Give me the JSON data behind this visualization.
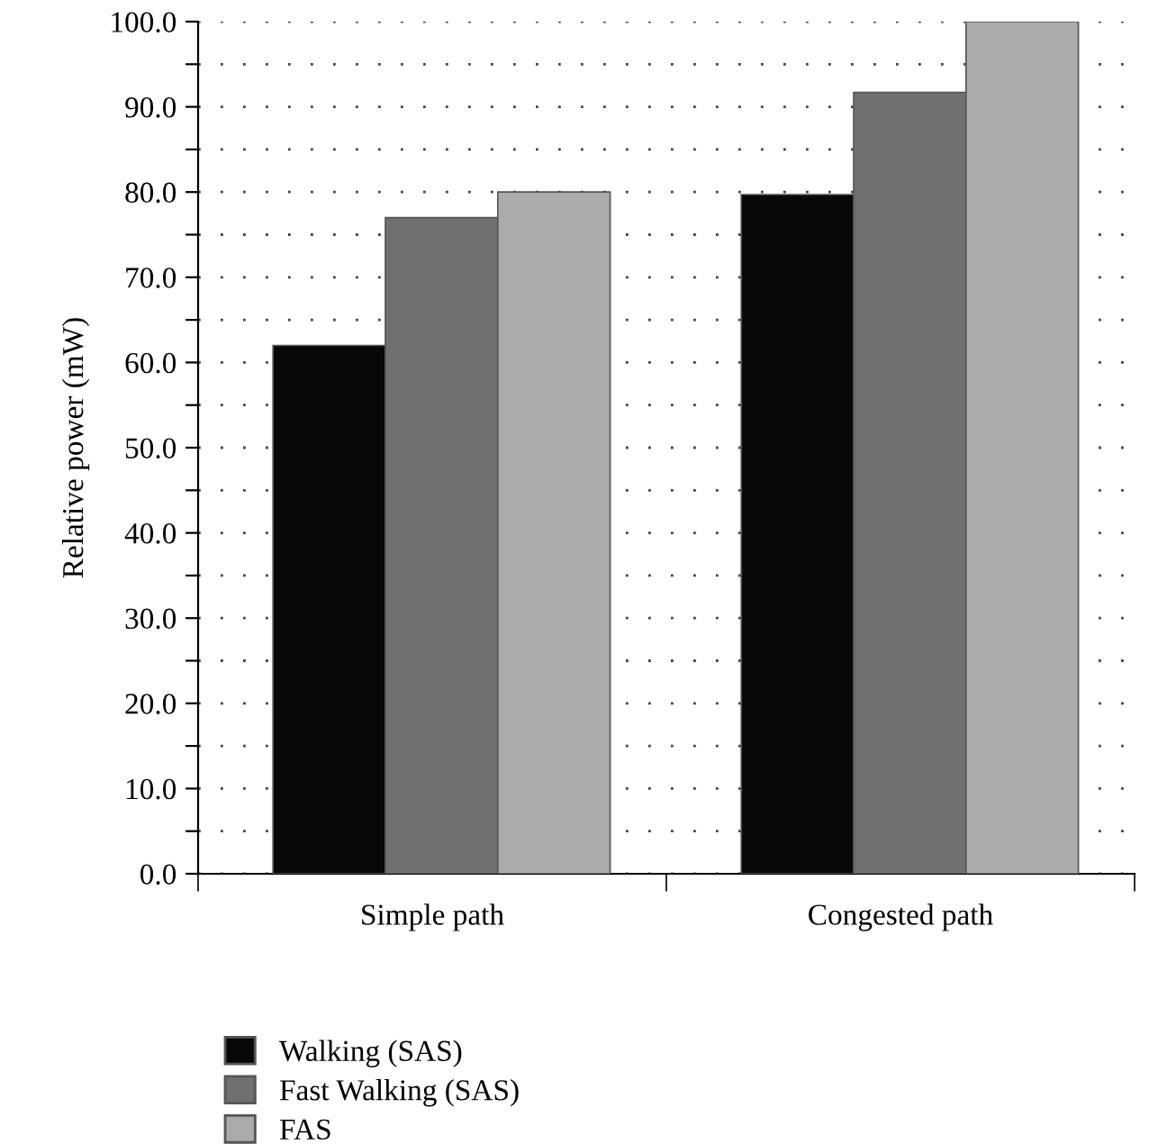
{
  "chart_data": {
    "type": "bar",
    "ylabel": "Relative power (mW)",
    "categories": [
      "Simple path",
      "Congested path"
    ],
    "series": [
      {
        "name": "Walking (SAS)",
        "color": "#080806",
        "values": [
          62.0,
          79.7
        ]
      },
      {
        "name": "Fast Walking (SAS)",
        "color": "#707070",
        "values": [
          77.0,
          91.7
        ]
      },
      {
        "name": "FAS",
        "color": "#ababab",
        "values": [
          80.0,
          100.0
        ]
      }
    ],
    "ylim": [
      0,
      100
    ],
    "yticks": [
      {
        "value": 0,
        "label": "0.0"
      },
      {
        "value": 5,
        "label": null
      },
      {
        "value": 10,
        "label": "10.0"
      },
      {
        "value": 15,
        "label": null
      },
      {
        "value": 20,
        "label": "20.0"
      },
      {
        "value": 25,
        "label": null
      },
      {
        "value": 30,
        "label": "30.0"
      },
      {
        "value": 35,
        "label": null
      },
      {
        "value": 40,
        "label": "40.0"
      },
      {
        "value": 45,
        "label": null
      },
      {
        "value": 50,
        "label": "50.0"
      },
      {
        "value": 55,
        "label": null
      },
      {
        "value": 60,
        "label": "60.0"
      },
      {
        "value": 65,
        "label": null
      },
      {
        "value": 70,
        "label": "70.0"
      },
      {
        "value": 75,
        "label": null
      },
      {
        "value": 80,
        "label": "80.0"
      },
      {
        "value": 85,
        "label": null
      },
      {
        "value": 90,
        "label": "90.0"
      },
      {
        "value": 95,
        "label": null
      },
      {
        "value": 100,
        "label": "100.0"
      }
    ],
    "grid": "y",
    "legend": "bottom left"
  }
}
